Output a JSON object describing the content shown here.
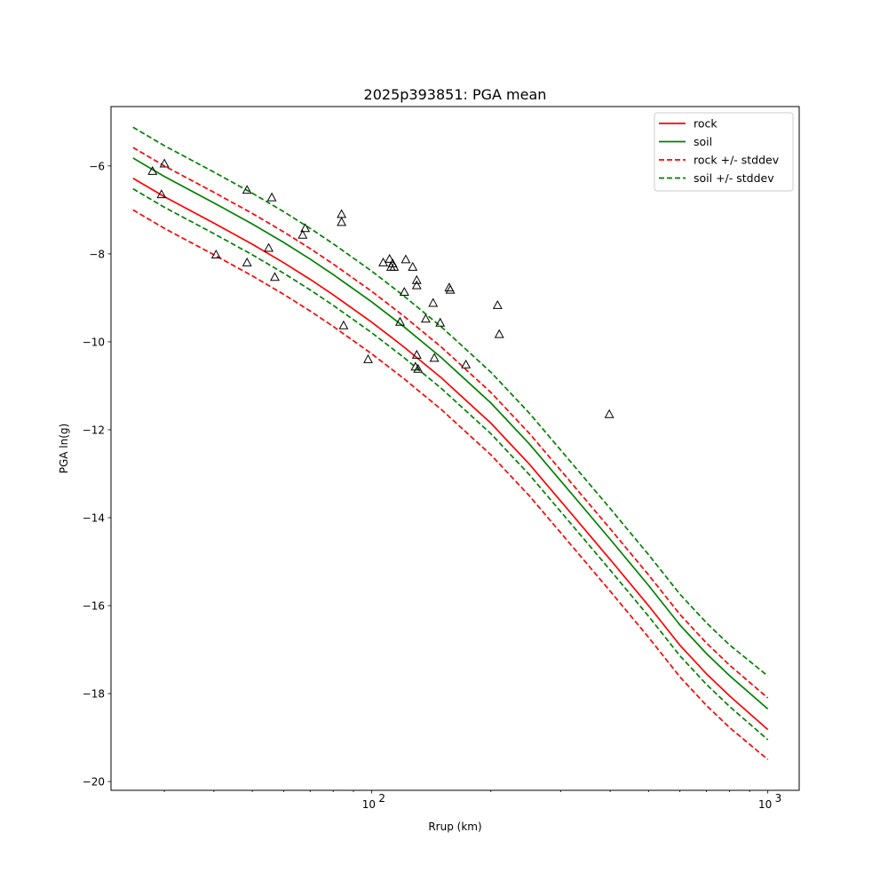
{
  "chart_data": {
    "type": "scatter",
    "title": "2025p393851: PGA mean",
    "xlabel": "Rrup (km)",
    "ylabel": "PGA ln(g)",
    "xscale": "log",
    "xlim": [
      22,
      1200
    ],
    "ylim": [
      -20.2,
      -4.65
    ],
    "x_major_ticks": [
      100,
      1000
    ],
    "x_major_tick_labels": [
      "10",
      "10"
    ],
    "x_tick_exponents": [
      "2",
      "3"
    ],
    "y_ticks": [
      -20,
      -18,
      -16,
      -14,
      -12,
      -10,
      -8,
      -6
    ],
    "y_tick_labels": [
      "−20",
      "−18",
      "−16",
      "−14",
      "−12",
      "−10",
      "−8",
      "−6"
    ],
    "grid": false,
    "legend": {
      "placement": "top-right",
      "entries": [
        "rock",
        "soil",
        "rock +/- stddev",
        "soil +/- stddev"
      ]
    },
    "colors": {
      "rock": "#ff0000",
      "soil": "#008000"
    },
    "series": [
      {
        "name": "rock",
        "style": "solid",
        "color": "#ff0000",
        "points": [
          [
            25,
            -6.28
          ],
          [
            30,
            -6.7
          ],
          [
            40,
            -7.3
          ],
          [
            50,
            -7.78
          ],
          [
            60,
            -8.2
          ],
          [
            70,
            -8.58
          ],
          [
            80,
            -8.93
          ],
          [
            100,
            -9.55
          ],
          [
            120,
            -10.1
          ],
          [
            150,
            -10.82
          ],
          [
            200,
            -11.85
          ],
          [
            250,
            -12.78
          ],
          [
            300,
            -13.62
          ],
          [
            400,
            -14.95
          ],
          [
            500,
            -16.0
          ],
          [
            600,
            -16.9
          ],
          [
            700,
            -17.55
          ],
          [
            800,
            -18.05
          ],
          [
            1000,
            -18.82
          ]
        ]
      },
      {
        "name": "soil",
        "style": "solid",
        "color": "#008000",
        "points": [
          [
            25,
            -5.82
          ],
          [
            30,
            -6.24
          ],
          [
            40,
            -6.84
          ],
          [
            50,
            -7.32
          ],
          [
            60,
            -7.74
          ],
          [
            70,
            -8.12
          ],
          [
            80,
            -8.47
          ],
          [
            100,
            -9.09
          ],
          [
            120,
            -9.64
          ],
          [
            150,
            -10.36
          ],
          [
            200,
            -11.39
          ],
          [
            250,
            -12.32
          ],
          [
            300,
            -13.16
          ],
          [
            400,
            -14.49
          ],
          [
            500,
            -15.54
          ],
          [
            600,
            -16.44
          ],
          [
            700,
            -17.09
          ],
          [
            800,
            -17.59
          ],
          [
            1000,
            -18.35
          ]
        ]
      },
      {
        "name": "rock +/- stddev",
        "style": "dashed",
        "color": "#ff0000",
        "points": [
          [
            25,
            -5.58
          ],
          [
            30,
            -6.0
          ],
          [
            40,
            -6.6
          ],
          [
            50,
            -7.08
          ],
          [
            60,
            -7.5
          ],
          [
            70,
            -7.88
          ],
          [
            80,
            -8.23
          ],
          [
            100,
            -8.85
          ],
          [
            120,
            -9.4
          ],
          [
            150,
            -10.12
          ],
          [
            200,
            -11.15
          ],
          [
            250,
            -12.08
          ],
          [
            300,
            -12.92
          ],
          [
            400,
            -14.25
          ],
          [
            500,
            -15.3
          ],
          [
            600,
            -16.2
          ],
          [
            700,
            -16.85
          ],
          [
            800,
            -17.35
          ],
          [
            1000,
            -18.1
          ]
        ]
      },
      {
        "name": "rock +/- stddev (lower)",
        "style": "dashed",
        "color": "#ff0000",
        "points": [
          [
            25,
            -7.0
          ],
          [
            30,
            -7.42
          ],
          [
            40,
            -8.02
          ],
          [
            50,
            -8.5
          ],
          [
            60,
            -8.92
          ],
          [
            70,
            -9.3
          ],
          [
            80,
            -9.65
          ],
          [
            100,
            -10.27
          ],
          [
            120,
            -10.82
          ],
          [
            150,
            -11.54
          ],
          [
            200,
            -12.57
          ],
          [
            250,
            -13.5
          ],
          [
            300,
            -14.34
          ],
          [
            400,
            -15.67
          ],
          [
            500,
            -16.72
          ],
          [
            600,
            -17.62
          ],
          [
            700,
            -18.27
          ],
          [
            800,
            -18.77
          ],
          [
            1000,
            -19.5
          ]
        ]
      },
      {
        "name": "soil +/- stddev",
        "style": "dashed",
        "color": "#008000",
        "points": [
          [
            25,
            -5.12
          ],
          [
            30,
            -5.54
          ],
          [
            40,
            -6.14
          ],
          [
            50,
            -6.62
          ],
          [
            60,
            -7.04
          ],
          [
            70,
            -7.42
          ],
          [
            80,
            -7.77
          ],
          [
            100,
            -8.39
          ],
          [
            120,
            -8.94
          ],
          [
            150,
            -9.66
          ],
          [
            200,
            -10.69
          ],
          [
            250,
            -11.62
          ],
          [
            300,
            -12.46
          ],
          [
            400,
            -13.79
          ],
          [
            500,
            -14.84
          ],
          [
            600,
            -15.74
          ],
          [
            700,
            -16.39
          ],
          [
            800,
            -16.89
          ],
          [
            1000,
            -17.6
          ]
        ]
      },
      {
        "name": "soil +/- stddev (lower)",
        "style": "dashed",
        "color": "#008000",
        "points": [
          [
            25,
            -6.52
          ],
          [
            30,
            -6.94
          ],
          [
            40,
            -7.54
          ],
          [
            50,
            -8.02
          ],
          [
            60,
            -8.44
          ],
          [
            70,
            -8.82
          ],
          [
            80,
            -9.17
          ],
          [
            100,
            -9.79
          ],
          [
            120,
            -10.34
          ],
          [
            150,
            -11.06
          ],
          [
            200,
            -12.09
          ],
          [
            250,
            -13.02
          ],
          [
            300,
            -13.86
          ],
          [
            400,
            -15.19
          ],
          [
            500,
            -16.24
          ],
          [
            600,
            -17.14
          ],
          [
            700,
            -17.79
          ],
          [
            800,
            -18.29
          ],
          [
            1000,
            -19.05
          ]
        ]
      }
    ],
    "observations": {
      "marker": "triangle",
      "color": "#000000",
      "points": [
        [
          28.0,
          -6.12
        ],
        [
          29.5,
          -6.65
        ],
        [
          30.0,
          -5.95
        ],
        [
          40.5,
          -8.02
        ],
        [
          48.5,
          -6.55
        ],
        [
          48.5,
          -8.2
        ],
        [
          55.0,
          -7.87
        ],
        [
          56.0,
          -6.72
        ],
        [
          57.0,
          -8.53
        ],
        [
          67.0,
          -7.57
        ],
        [
          68.0,
          -7.42
        ],
        [
          84.0,
          -7.1
        ],
        [
          84.0,
          -7.28
        ],
        [
          85.0,
          -9.63
        ],
        [
          98.0,
          -10.4
        ],
        [
          107.0,
          -8.2
        ],
        [
          111.0,
          -8.12
        ],
        [
          112.0,
          -8.3
        ],
        [
          113.0,
          -8.22
        ],
        [
          114.0,
          -8.3
        ],
        [
          118.0,
          -9.55
        ],
        [
          121.0,
          -8.87
        ],
        [
          122.0,
          -8.13
        ],
        [
          127.0,
          -8.3
        ],
        [
          129.0,
          -10.57
        ],
        [
          130.0,
          -10.3
        ],
        [
          130.0,
          -8.6
        ],
        [
          130.0,
          -8.72
        ],
        [
          131.0,
          -10.62
        ],
        [
          137.0,
          -9.48
        ],
        [
          143.0,
          -9.12
        ],
        [
          144.0,
          -10.37
        ],
        [
          149.0,
          -9.57
        ],
        [
          157.0,
          -8.77
        ],
        [
          158.0,
          -8.82
        ],
        [
          173.0,
          -10.52
        ],
        [
          208.0,
          -9.17
        ],
        [
          210.0,
          -9.83
        ],
        [
          398.0,
          -11.65
        ]
      ]
    }
  }
}
